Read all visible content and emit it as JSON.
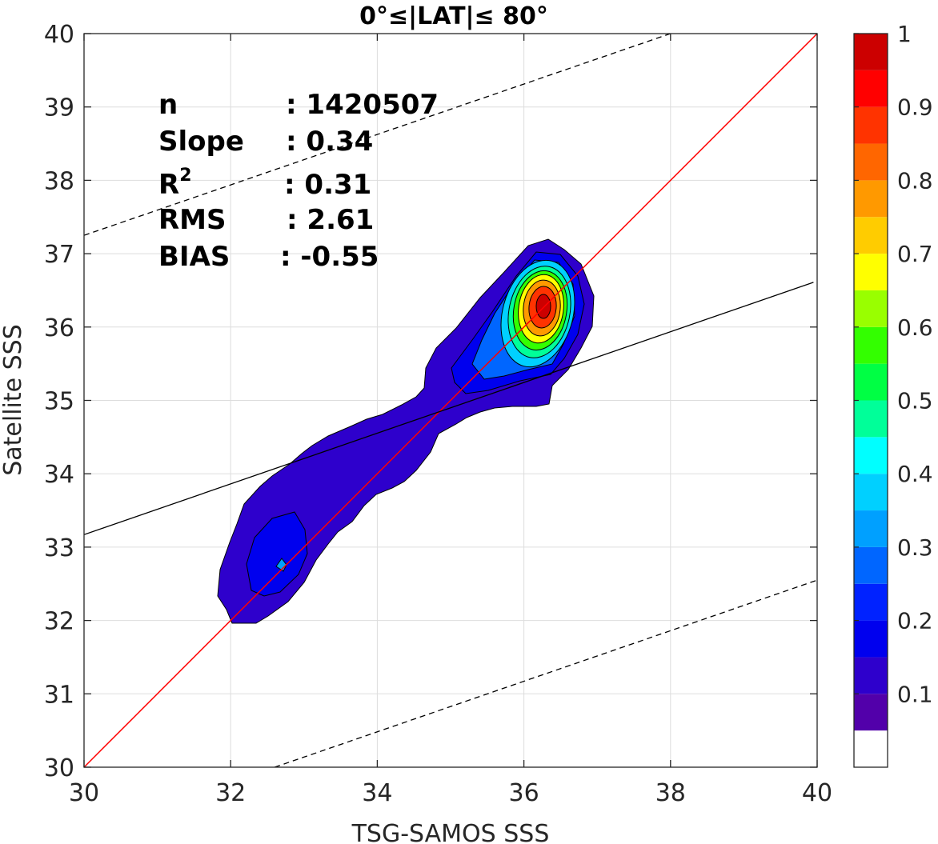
{
  "chart_data": {
    "type": "contour",
    "title": "0°≤|LAT|≤ 80°",
    "xlabel": "TSG-SAMOS SSS",
    "ylabel": "Satellite SSS",
    "xlim": [
      30,
      40
    ],
    "ylim": [
      30,
      40
    ],
    "x_ticks": [
      "30",
      "32",
      "34",
      "36",
      "38",
      "40"
    ],
    "y_ticks": [
      "30",
      "31",
      "32",
      "33",
      "34",
      "35",
      "36",
      "37",
      "38",
      "39",
      "40"
    ],
    "grid": true,
    "stats": {
      "n": {
        "label": "n",
        "value": ": 1420507"
      },
      "slope": {
        "label": "Slope",
        "value": ": 0.34"
      },
      "r2": {
        "label": "R",
        "sup": "2",
        "value": ": 0.31"
      },
      "rms": {
        "label": "RMS",
        "value": ": 2.61"
      },
      "bias": {
        "label": "BIAS",
        "value": ": -0.55"
      }
    },
    "lines": {
      "one_to_one": {
        "color": "#ff0000",
        "from": [
          30,
          30
        ],
        "to": [
          40,
          40
        ]
      },
      "fit": {
        "color": "#000000",
        "from": [
          30,
          33.17
        ],
        "to": [
          39.95,
          36.61
        ]
      },
      "upper_dashed": {
        "color": "#000000",
        "from": [
          30,
          37.25
        ],
        "to": [
          38,
          40
        ]
      },
      "lower_dashed": {
        "color": "#000000",
        "from": [
          32.6,
          30
        ],
        "to": [
          40,
          32.55
        ]
      }
    },
    "density_peaks": [
      {
        "x": 36.27,
        "y": 36.27,
        "peak_level": 0.95
      },
      {
        "x": 32.72,
        "y": 32.77,
        "peak_level": 0.25
      }
    ],
    "colorbar": {
      "range": [
        0,
        1
      ],
      "ticks": [
        "0.1",
        "0.2",
        "0.3",
        "0.4",
        "0.5",
        "0.6",
        "0.7",
        "0.8",
        "0.9",
        "1"
      ],
      "levels": [
        0.05,
        0.1,
        0.15,
        0.2,
        0.25,
        0.3,
        0.35,
        0.4,
        0.45,
        0.5,
        0.55,
        0.6,
        0.65,
        0.7,
        0.75,
        0.8,
        0.85,
        0.9,
        0.95,
        1.0
      ],
      "colors": [
        "#ffffff",
        "#5200aa",
        "#2e00cc",
        "#0000ee",
        "#0022ff",
        "#0066ff",
        "#00a0ff",
        "#00d0ff",
        "#00ffff",
        "#00ff99",
        "#00ff44",
        "#33ff00",
        "#99ff00",
        "#ffff00",
        "#ffcc00",
        "#ff9900",
        "#ff6600",
        "#ff3300",
        "#ff0000",
        "#cc0000",
        "#8b0000"
      ]
    }
  }
}
